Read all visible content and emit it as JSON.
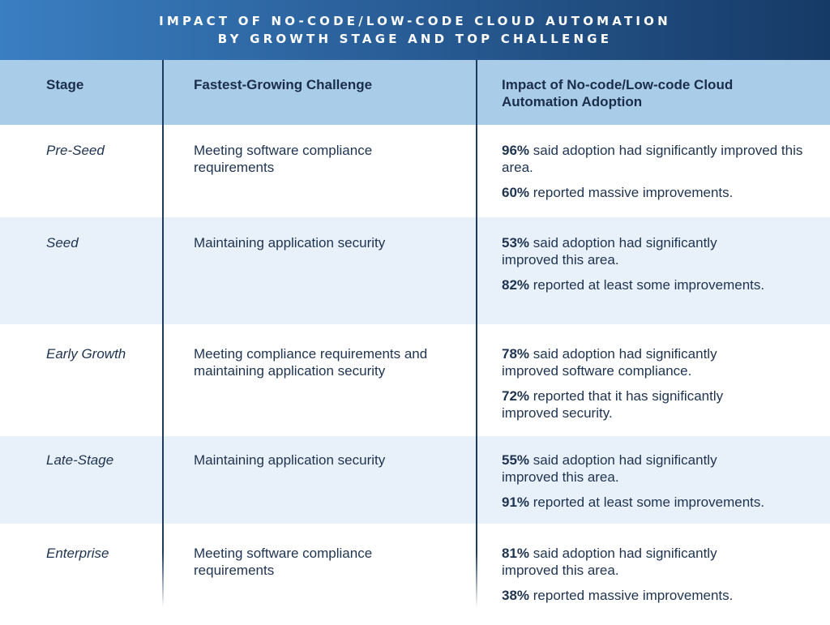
{
  "title": {
    "line1": "IMPACT OF NO-CODE/LOW-CODE CLOUD AUTOMATION",
    "line2": "BY GROWTH STAGE AND TOP CHALLENGE"
  },
  "headers": {
    "stage": "Stage",
    "challenge": "Fastest-Growing Challenge",
    "impact": "Impact of No-code/Low-code Cloud Automation Adoption"
  },
  "colors": {
    "title_bg_start": "#3a7fc2",
    "title_bg_end": "#163a66",
    "header_bg": "#a9cce9",
    "alt_row_bg": "#e8f1fa",
    "text": "#1e3350"
  },
  "rows": [
    {
      "stage": "Pre-Seed",
      "challenge": "Meeting software compliance requirements",
      "impact1_pct": "96%",
      "impact1_text": " said adoption had significantly improved this area.",
      "impact2_pct": "60%",
      "impact2_text": " reported massive improvements."
    },
    {
      "stage": "Seed",
      "challenge": "Maintaining application security",
      "impact1_pct": "53%",
      "impact1_text": " said adoption had significantly improved this area.",
      "impact2_pct": "82%",
      "impact2_text": " reported at least some improvements."
    },
    {
      "stage": "Early Growth",
      "challenge": "Meeting compliance requirements and maintaining application security",
      "impact1_pct": "78%",
      "impact1_text": " said adoption had significantly improved software compliance.",
      "impact2_pct": "72%",
      "impact2_text": " reported that it has significantly improved security."
    },
    {
      "stage": "Late-Stage",
      "challenge": "Maintaining application security",
      "impact1_pct": "55%",
      "impact1_text": " said adoption had significantly improved this area.",
      "impact2_pct": "91%",
      "impact2_text": " reported at least some improvements."
    },
    {
      "stage": "Enterprise",
      "challenge": "Meeting software compliance requirements",
      "impact1_pct": "81%",
      "impact1_text": " said adoption had significantly improved this area.",
      "impact2_pct": "38%",
      "impact2_text": " reported massive improvements."
    }
  ]
}
